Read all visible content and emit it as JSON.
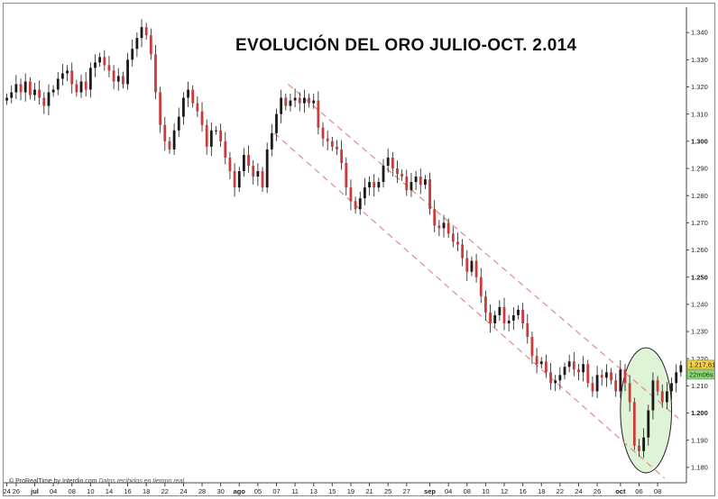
{
  "chart_data": {
    "type": "line",
    "title": "EVOLUCIÓN DEL ORO JULIO-OCT. 2.014",
    "credit": "ProRealTime by Interdin.com",
    "credit_note": "Datos recibidos en tiempo real",
    "price_label": "1.217,61",
    "time_label": "22m06s",
    "ylim": [
      1175,
      1348
    ],
    "y_ticks": [
      "1.340",
      "1.330",
      "1.320",
      "1.310",
      "1.300",
      "1.290",
      "1.280",
      "1.270",
      "1.260",
      "1.250",
      "1.240",
      "1.230",
      "1.220",
      "1.210",
      "1.200",
      "1.190",
      "1.180"
    ],
    "y_tick_values": [
      1340,
      1330,
      1320,
      1310,
      1300,
      1290,
      1280,
      1270,
      1260,
      1250,
      1240,
      1230,
      1220,
      1210,
      1200,
      1190,
      1180
    ],
    "y_tick_bold": [
      1300,
      1250,
      1200
    ],
    "x_ticks": [
      "24",
      "26",
      "jul",
      "04",
      "08",
      "10",
      "14",
      "16",
      "18",
      "22",
      "24",
      "28",
      "30",
      "ago",
      "05",
      "07",
      "11",
      "13",
      "15",
      "19",
      "21",
      "25",
      "27",
      "sep",
      "04",
      "08",
      "10",
      "12",
      "16",
      "18",
      "22",
      "24",
      "26",
      "oct",
      "06",
      "08"
    ],
    "x_tick_bold": [
      "jul",
      "ago",
      "sep",
      "oct"
    ],
    "x_tick_index": [
      0,
      2,
      6,
      10,
      14,
      18,
      22,
      26,
      30,
      34,
      38,
      42,
      46,
      50,
      54,
      58,
      62,
      66,
      70,
      74,
      78,
      82,
      86,
      91,
      95,
      99,
      103,
      107,
      111,
      115,
      119,
      123,
      127,
      132,
      136,
      140
    ],
    "x_index_range": [
      -0.5,
      146
    ],
    "close": [
      1316,
      1318,
      1321,
      1318,
      1322,
      1317,
      1319,
      1316,
      1313,
      1318,
      1319,
      1323,
      1325,
      1326,
      1321,
      1318,
      1322,
      1319,
      1327,
      1329,
      1331,
      1328,
      1326,
      1322,
      1324,
      1321,
      1330,
      1334,
      1338,
      1342,
      1339,
      1332,
      1318,
      1306,
      1300,
      1297,
      1304,
      1309,
      1316,
      1319,
      1314,
      1311,
      1306,
      1298,
      1304,
      1304,
      1300,
      1294,
      1289,
      1283,
      1289,
      1295,
      1291,
      1287,
      1289,
      1283,
      1297,
      1303,
      1310,
      1316,
      1313,
      1315,
      1316,
      1314,
      1316,
      1314,
      1315,
      1305,
      1301,
      1300,
      1298,
      1297,
      1292,
      1283,
      1278,
      1275,
      1279,
      1283,
      1285,
      1283,
      1285,
      1291,
      1294,
      1290,
      1288,
      1287,
      1282,
      1285,
      1287,
      1284,
      1286,
      1275,
      1269,
      1268,
      1270,
      1266,
      1263,
      1262,
      1257,
      1252,
      1256,
      1250,
      1243,
      1237,
      1233,
      1236,
      1239,
      1233,
      1234,
      1236,
      1238,
      1233,
      1228,
      1221,
      1218,
      1219,
      1215,
      1211,
      1212,
      1214,
      1217,
      1219,
      1216,
      1215,
      1218,
      1211,
      1208,
      1214,
      1213,
      1215,
      1212,
      1208,
      1216,
      1211,
      1204,
      1188,
      1186,
      1191,
      1201,
      1212,
      1208,
      1204,
      1208,
      1211,
      1215,
      1217.61
    ],
    "channel_upper": [
      {
        "x": 60.5,
        "y": 1321
      },
      {
        "x": 144.5,
        "y": 1198
      }
    ],
    "channel_lower": [
      {
        "x": 57.5,
        "y": 1303
      },
      {
        "x": 141.5,
        "y": 1176
      }
    ],
    "highlight_ellipse": {
      "cx": 137.5,
      "cy": 1201,
      "rx": 5.5,
      "ry": 23
    }
  },
  "colors": {
    "candle_up": "#1a1a1a",
    "candle_down": "#cc3a3a",
    "channel": "#e08a8a",
    "ellipse_fill": "#dff3d6",
    "ellipse_stroke": "#222222",
    "price_badge": "#f1d04a",
    "time_badge": "#8fdc7a"
  }
}
